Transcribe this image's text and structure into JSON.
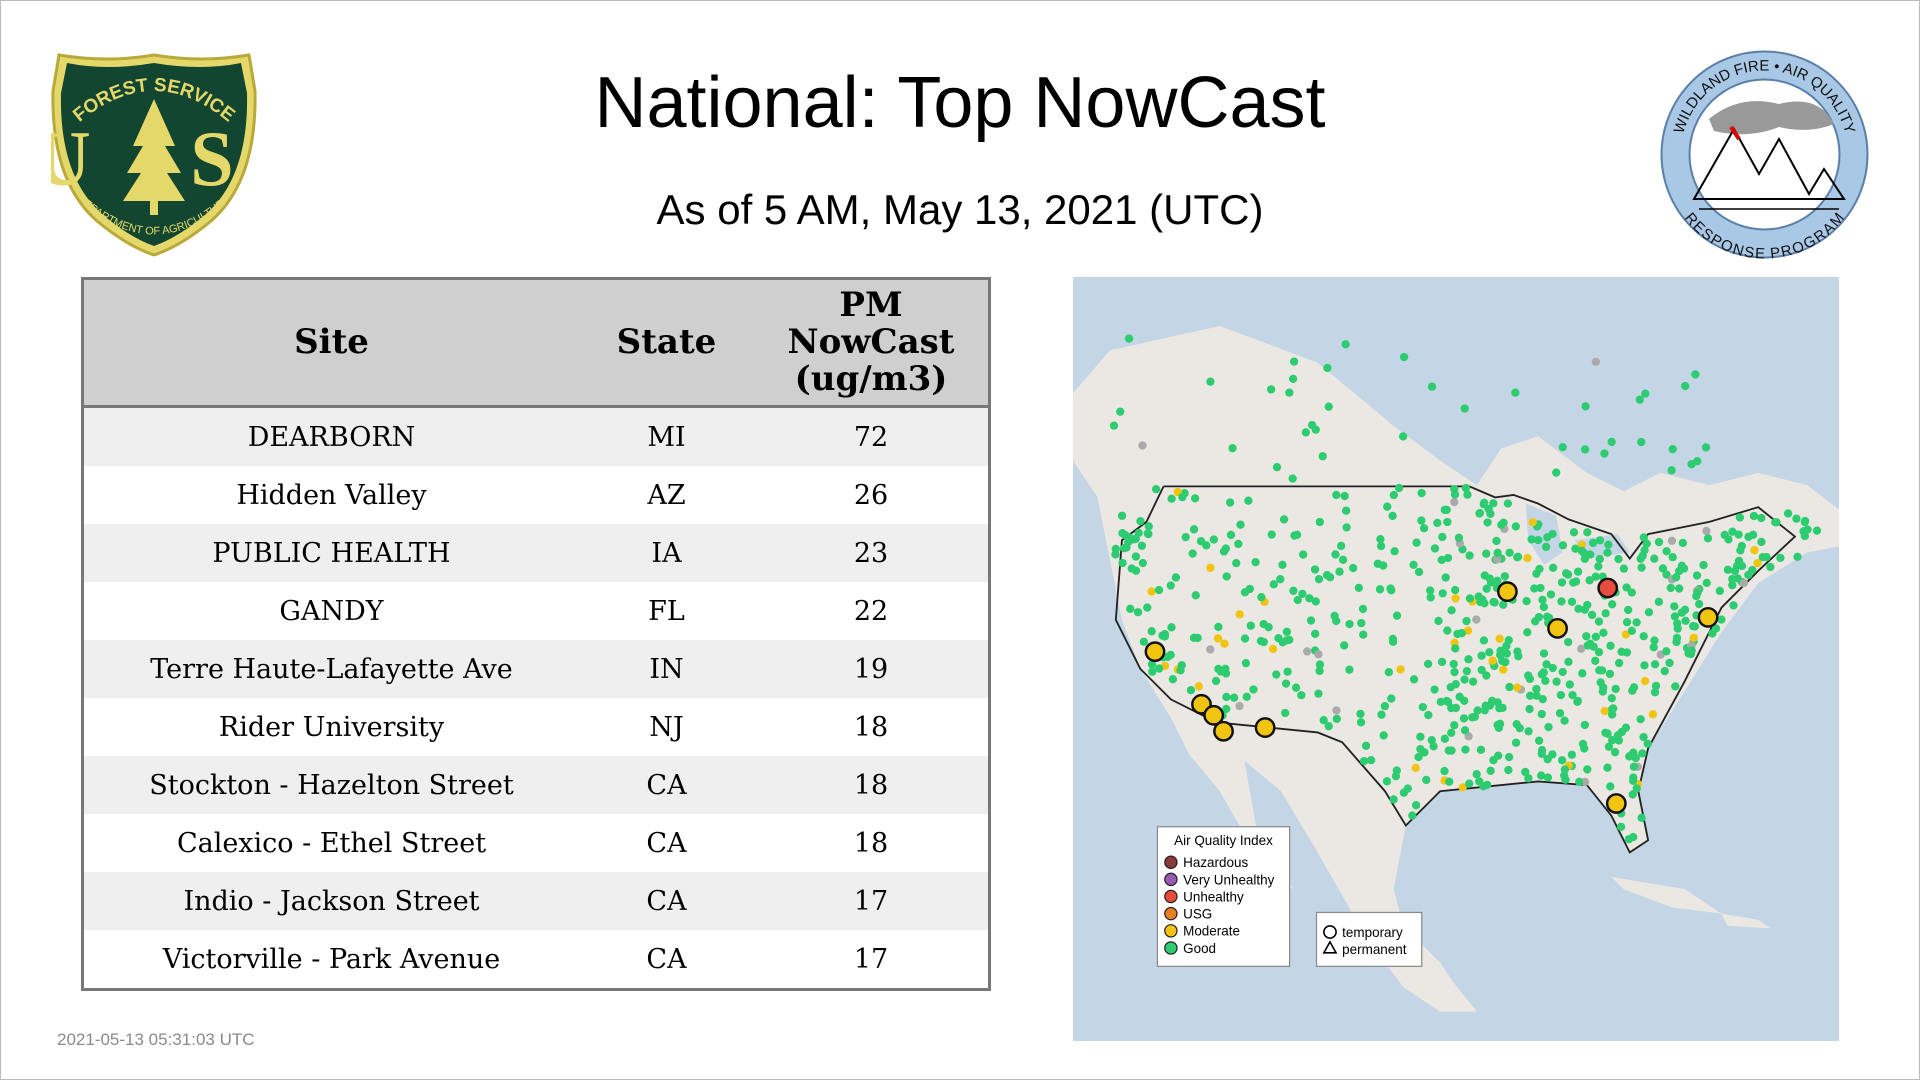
{
  "header": {
    "title": "National: Top NowCast",
    "subtitle": "As of  5 AM, May 13, 2021 (UTC)"
  },
  "logos": {
    "usfs": {
      "top_text": "FOREST SERVICE",
      "letters": "U S",
      "bottom_text": "DEPARTMENT OF AGRICULTURE"
    },
    "wfaq": {
      "top_text": "WILDLAND FIRE • AIR QUALITY",
      "bottom_text": "RESPONSE PROGRAM"
    }
  },
  "table": {
    "headers": [
      "Site",
      "State",
      "PM\nNowCast\n(ug/m3)"
    ],
    "header_lines": [
      "PM",
      "NowCast",
      "(ug/m3)"
    ],
    "rows": [
      {
        "site": "DEARBORN",
        "state": "MI",
        "value": "72"
      },
      {
        "site": "Hidden Valley",
        "state": "AZ",
        "value": "26"
      },
      {
        "site": "PUBLIC HEALTH",
        "state": "IA",
        "value": "23"
      },
      {
        "site": "GANDY",
        "state": "FL",
        "value": "22"
      },
      {
        "site": "Terre Haute-Lafayette Ave",
        "state": "IN",
        "value": "19"
      },
      {
        "site": "Rider University",
        "state": "NJ",
        "value": "18"
      },
      {
        "site": "Stockton - Hazelton Street",
        "state": "CA",
        "value": "18"
      },
      {
        "site": "Calexico - Ethel Street",
        "state": "CA",
        "value": "18"
      },
      {
        "site": "Indio - Jackson Street",
        "state": "CA",
        "value": "17"
      },
      {
        "site": "Victorville - Park Avenue",
        "state": "CA",
        "value": "17"
      }
    ]
  },
  "map": {
    "legend": {
      "title": "Air Quality Index",
      "items": [
        {
          "label": "Hazardous",
          "color": "#8b3a3a"
        },
        {
          "label": "Very Unhealthy",
          "color": "#9b59b6"
        },
        {
          "label": "Unhealthy",
          "color": "#e74c3c"
        },
        {
          "label": "USG",
          "color": "#e67e22"
        },
        {
          "label": "Moderate",
          "color": "#f1c40f"
        },
        {
          "label": "Good",
          "color": "#2ecc71"
        }
      ]
    },
    "shape_legend": [
      {
        "label": "temporary",
        "icon": "circle-icon"
      },
      {
        "label": "permanent",
        "icon": "triangle-icon"
      }
    ],
    "colors": {
      "water": "#c4d6e6",
      "land": "#ebe8e3",
      "border": "#222222"
    }
  },
  "footer": {
    "timestamp": "2021-05-13 05:31:03 UTC"
  }
}
